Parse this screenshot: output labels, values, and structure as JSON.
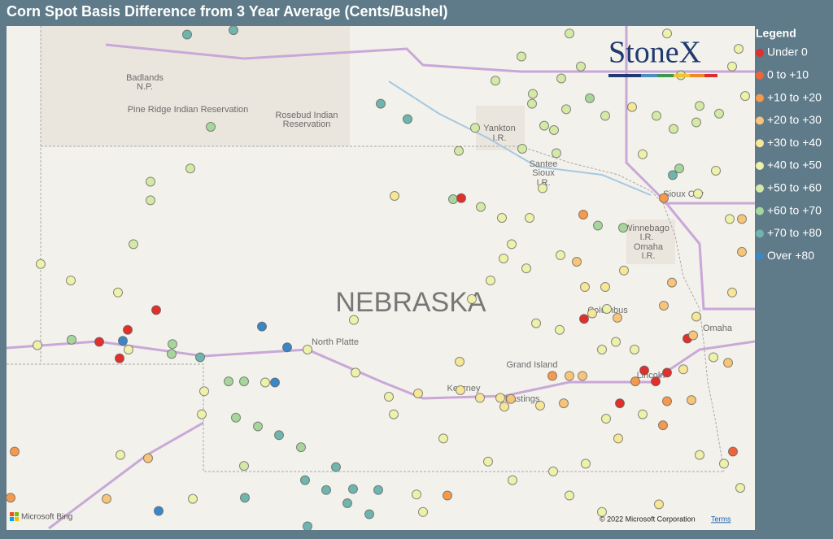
{
  "title": "Corn Spot Basis Difference from 3 Year Average (Cents/Bushel)",
  "logo": "StoneX",
  "legend": {
    "title": "Legend",
    "items": [
      {
        "label": "Under 0",
        "color": "#e0302b"
      },
      {
        "label": "0 to +10",
        "color": "#f0643c"
      },
      {
        "label": "+10 to +20",
        "color": "#f59a4c"
      },
      {
        "label": "+20 to +30",
        "color": "#f7c57a"
      },
      {
        "label": "+30 to +40",
        "color": "#f6e697"
      },
      {
        "label": "+40 to +50",
        "color": "#eef1aa"
      },
      {
        "label": "+50 to +60",
        "color": "#d4e9a6"
      },
      {
        "label": "+60 to +70",
        "color": "#a6d69c"
      },
      {
        "label": "+70 to +80",
        "color": "#6fb5ad"
      },
      {
        "label": "Over +80",
        "color": "#3b86c6"
      }
    ]
  },
  "map": {
    "state_label": "NEBRASKA",
    "places": [
      "Badlands",
      "N.P.",
      "Pine Ridge Indian Reservation",
      "Rosebud Indian",
      "Reservation",
      "Yankton",
      "I.R.",
      "Santee",
      "Sioux",
      "I.R.",
      "Sioux City",
      "Winnebago",
      "I.R.",
      "Omaha",
      "I.R.",
      "North Platte",
      "Columbus",
      "Omaha",
      "Grand Island",
      "Kearney",
      "Hastings",
      "Lincoln"
    ],
    "attribution": [
      "Microsoft Bing",
      "© 2022 Microsoft Corporation",
      "Terms"
    ],
    "points": [
      {
        "lon": -102.25,
        "lat": 43.99,
        "bin": 8
      },
      {
        "lon": -101.68,
        "lat": 44.03,
        "bin": 8
      },
      {
        "lon": -99.87,
        "lat": 43.36,
        "bin": 8
      },
      {
        "lon": -99.54,
        "lat": 43.22,
        "bin": 8
      },
      {
        "lon": -101.96,
        "lat": 43.15,
        "bin": 7
      },
      {
        "lon": -102.7,
        "lat": 42.65,
        "bin": 6
      },
      {
        "lon": -102.21,
        "lat": 42.77,
        "bin": 6
      },
      {
        "lon": -102.7,
        "lat": 42.48,
        "bin": 6
      },
      {
        "lon": -102.91,
        "lat": 42.08,
        "bin": 6
      },
      {
        "lon": -104.05,
        "lat": 41.9,
        "bin": 5
      },
      {
        "lon": -103.68,
        "lat": 41.75,
        "bin": 5
      },
      {
        "lon": -103.1,
        "lat": 41.64,
        "bin": 5
      },
      {
        "lon": -102.63,
        "lat": 41.48,
        "bin": 0
      },
      {
        "lon": -102.98,
        "lat": 41.3,
        "bin": 0
      },
      {
        "lon": -103.33,
        "lat": 41.19,
        "bin": 0
      },
      {
        "lon": -103.04,
        "lat": 41.2,
        "bin": 9
      },
      {
        "lon": -103.08,
        "lat": 41.04,
        "bin": 0
      },
      {
        "lon": -103.67,
        "lat": 41.21,
        "bin": 7
      },
      {
        "lon": -104.09,
        "lat": 41.16,
        "bin": 5
      },
      {
        "lon": -102.43,
        "lat": 41.17,
        "bin": 7
      },
      {
        "lon": -102.44,
        "lat": 41.08,
        "bin": 7
      },
      {
        "lon": -102.97,
        "lat": 41.12,
        "bin": 5
      },
      {
        "lon": -102.09,
        "lat": 41.05,
        "bin": 8
      },
      {
        "lon": -101.33,
        "lat": 41.33,
        "bin": 9
      },
      {
        "lon": -101.02,
        "lat": 41.14,
        "bin": 9
      },
      {
        "lon": -100.77,
        "lat": 41.12,
        "bin": 5
      },
      {
        "lon": -101.74,
        "lat": 40.83,
        "bin": 7
      },
      {
        "lon": -101.55,
        "lat": 40.83,
        "bin": 7
      },
      {
        "lon": -101.29,
        "lat": 40.82,
        "bin": 5
      },
      {
        "lon": -101.17,
        "lat": 40.82,
        "bin": 9
      },
      {
        "lon": -102.04,
        "lat": 40.74,
        "bin": 5
      },
      {
        "lon": -102.07,
        "lat": 40.53,
        "bin": 5
      },
      {
        "lon": -101.65,
        "lat": 40.5,
        "bin": 7
      },
      {
        "lon": -101.38,
        "lat": 40.42,
        "bin": 7
      },
      {
        "lon": -101.12,
        "lat": 40.34,
        "bin": 8
      },
      {
        "lon": -100.85,
        "lat": 40.23,
        "bin": 7
      },
      {
        "lon": -100.42,
        "lat": 40.05,
        "bin": 8
      },
      {
        "lon": -100.8,
        "lat": 39.93,
        "bin": 8
      },
      {
        "lon": -100.54,
        "lat": 39.84,
        "bin": 8
      },
      {
        "lon": -100.21,
        "lat": 39.85,
        "bin": 8
      },
      {
        "lon": -99.9,
        "lat": 39.84,
        "bin": 8
      },
      {
        "lon": -100.28,
        "lat": 39.72,
        "bin": 8
      },
      {
        "lon": -100.01,
        "lat": 39.62,
        "bin": 8
      },
      {
        "lon": -100.77,
        "lat": 39.51,
        "bin": 8
      },
      {
        "lon": -101.54,
        "lat": 39.77,
        "bin": 8
      },
      {
        "lon": -102.6,
        "lat": 39.65,
        "bin": 9
      },
      {
        "lon": -102.18,
        "lat": 39.76,
        "bin": 5
      },
      {
        "lon": -103.24,
        "lat": 39.76,
        "bin": 3
      },
      {
        "lon": -104.42,
        "lat": 39.77,
        "bin": 2
      },
      {
        "lon": -104.37,
        "lat": 40.19,
        "bin": 2
      },
      {
        "lon": -103.07,
        "lat": 40.16,
        "bin": 5
      },
      {
        "lon": -102.73,
        "lat": 40.13,
        "bin": 3
      },
      {
        "lon": -101.55,
        "lat": 40.06,
        "bin": 6
      },
      {
        "lon": -100.18,
        "lat": 40.91,
        "bin": 5
      },
      {
        "lon": -100.2,
        "lat": 41.39,
        "bin": 5
      },
      {
        "lon": -99.7,
        "lat": 42.52,
        "bin": 4
      },
      {
        "lon": -98.98,
        "lat": 42.49,
        "bin": 7
      },
      {
        "lon": -98.88,
        "lat": 42.5,
        "bin": 0
      },
      {
        "lon": -98.64,
        "lat": 42.42,
        "bin": 6
      },
      {
        "lon": -98.91,
        "lat": 42.93,
        "bin": 6
      },
      {
        "lon": -98.71,
        "lat": 43.14,
        "bin": 6
      },
      {
        "lon": -98.46,
        "lat": 43.57,
        "bin": 6
      },
      {
        "lon": -98.0,
        "lat": 43.45,
        "bin": 6
      },
      {
        "lon": -98.01,
        "lat": 43.36,
        "bin": 6
      },
      {
        "lon": -97.86,
        "lat": 43.16,
        "bin": 6
      },
      {
        "lon": -97.74,
        "lat": 43.12,
        "bin": 6
      },
      {
        "lon": -97.55,
        "lat": 44.0,
        "bin": 6
      },
      {
        "lon": -97.65,
        "lat": 43.59,
        "bin": 6
      },
      {
        "lon": -98.14,
        "lat": 43.79,
        "bin": 6
      },
      {
        "lon": -97.41,
        "lat": 43.7,
        "bin": 6
      },
      {
        "lon": -97.3,
        "lat": 43.41,
        "bin": 7
      },
      {
        "lon": -97.11,
        "lat": 43.25,
        "bin": 6
      },
      {
        "lon": -96.78,
        "lat": 43.33,
        "bin": 4
      },
      {
        "lon": -96.48,
        "lat": 43.25,
        "bin": 6
      },
      {
        "lon": -96.27,
        "lat": 43.13,
        "bin": 6
      },
      {
        "lon": -95.99,
        "lat": 43.19,
        "bin": 6
      },
      {
        "lon": -95.71,
        "lat": 43.27,
        "bin": 6
      },
      {
        "lon": -95.39,
        "lat": 43.43,
        "bin": 5
      },
      {
        "lon": -95.55,
        "lat": 43.7,
        "bin": 5
      },
      {
        "lon": -95.47,
        "lat": 43.86,
        "bin": 5
      },
      {
        "lon": -96.35,
        "lat": 44.0,
        "bin": 5
      },
      {
        "lon": -96.2,
        "lat": 42.77,
        "bin": 7
      },
      {
        "lon": -96.28,
        "lat": 42.71,
        "bin": 8
      },
      {
        "lon": -96.39,
        "lat": 42.5,
        "bin": 2
      },
      {
        "lon": -95.97,
        "lat": 42.54,
        "bin": 5
      },
      {
        "lon": -95.58,
        "lat": 42.31,
        "bin": 5
      },
      {
        "lon": -95.43,
        "lat": 42.31,
        "bin": 3
      },
      {
        "lon": -97.38,
        "lat": 42.35,
        "bin": 2
      },
      {
        "lon": -97.2,
        "lat": 42.25,
        "bin": 7
      },
      {
        "lon": -96.89,
        "lat": 42.23,
        "bin": 7
      },
      {
        "lon": -98.04,
        "lat": 42.32,
        "bin": 5
      },
      {
        "lon": -98.38,
        "lat": 42.32,
        "bin": 5
      },
      {
        "lon": -97.88,
        "lat": 42.59,
        "bin": 5
      },
      {
        "lon": -97.71,
        "lat": 42.91,
        "bin": 6
      },
      {
        "lon": -98.13,
        "lat": 42.95,
        "bin": 6
      },
      {
        "lon": -98.26,
        "lat": 42.08,
        "bin": 5
      },
      {
        "lon": -98.36,
        "lat": 41.95,
        "bin": 5
      },
      {
        "lon": -98.08,
        "lat": 41.86,
        "bin": 5
      },
      {
        "lon": -97.66,
        "lat": 41.98,
        "bin": 5
      },
      {
        "lon": -97.46,
        "lat": 41.92,
        "bin": 3
      },
      {
        "lon": -98.52,
        "lat": 41.75,
        "bin": 5
      },
      {
        "lon": -98.75,
        "lat": 41.58,
        "bin": 5
      },
      {
        "lon": -97.36,
        "lat": 41.69,
        "bin": 4
      },
      {
        "lon": -97.11,
        "lat": 41.69,
        "bin": 4
      },
      {
        "lon": -96.88,
        "lat": 41.84,
        "bin": 4
      },
      {
        "lon": -97.37,
        "lat": 41.4,
        "bin": 0
      },
      {
        "lon": -97.27,
        "lat": 41.45,
        "bin": 4
      },
      {
        "lon": -96.96,
        "lat": 41.41,
        "bin": 3
      },
      {
        "lon": -97.09,
        "lat": 41.49,
        "bin": 5
      },
      {
        "lon": -96.39,
        "lat": 41.52,
        "bin": 3
      },
      {
        "lon": -96.29,
        "lat": 41.73,
        "bin": 3
      },
      {
        "lon": -95.99,
        "lat": 41.42,
        "bin": 4
      },
      {
        "lon": -96.1,
        "lat": 41.22,
        "bin": 0
      },
      {
        "lon": -96.03,
        "lat": 41.25,
        "bin": 3
      },
      {
        "lon": -95.78,
        "lat": 41.05,
        "bin": 5
      },
      {
        "lon": -95.6,
        "lat": 41.0,
        "bin": 3
      },
      {
        "lon": -96.15,
        "lat": 40.94,
        "bin": 4
      },
      {
        "lon": -96.63,
        "lat": 40.93,
        "bin": 0
      },
      {
        "lon": -96.35,
        "lat": 40.91,
        "bin": 0
      },
      {
        "lon": -96.49,
        "lat": 40.83,
        "bin": 0
      },
      {
        "lon": -96.74,
        "lat": 40.83,
        "bin": 2
      },
      {
        "lon": -96.93,
        "lat": 40.63,
        "bin": 0
      },
      {
        "lon": -96.35,
        "lat": 40.65,
        "bin": 2
      },
      {
        "lon": -96.05,
        "lat": 40.66,
        "bin": 3
      },
      {
        "lon": -96.4,
        "lat": 40.43,
        "bin": 2
      },
      {
        "lon": -95.54,
        "lat": 40.19,
        "bin": 1
      },
      {
        "lon": -97.76,
        "lat": 40.88,
        "bin": 2
      },
      {
        "lon": -97.55,
        "lat": 40.88,
        "bin": 3
      },
      {
        "lon": -97.39,
        "lat": 40.88,
        "bin": 3
      },
      {
        "lon": -97.62,
        "lat": 40.63,
        "bin": 3
      },
      {
        "lon": -97.91,
        "lat": 40.61,
        "bin": 4
      },
      {
        "lon": -98.4,
        "lat": 40.68,
        "bin": 4
      },
      {
        "lon": -98.27,
        "lat": 40.67,
        "bin": 3
      },
      {
        "lon": -98.65,
        "lat": 40.68,
        "bin": 4
      },
      {
        "lon": -98.9,
        "lat": 41.01,
        "bin": 4
      },
      {
        "lon": -99.05,
        "lat": 39.79,
        "bin": 2
      },
      {
        "lon": -99.41,
        "lat": 40.72,
        "bin": 4
      },
      {
        "lon": -99.77,
        "lat": 40.69,
        "bin": 5
      },
      {
        "lon": -99.1,
        "lat": 40.31,
        "bin": 5
      },
      {
        "lon": -98.89,
        "lat": 40.75,
        "bin": 4
      },
      {
        "lon": -97.96,
        "lat": 41.36,
        "bin": 5
      },
      {
        "lon": -97.67,
        "lat": 41.3,
        "bin": 5
      },
      {
        "lon": -96.98,
        "lat": 41.19,
        "bin": 5
      },
      {
        "lon": -97.15,
        "lat": 41.12,
        "bin": 5
      },
      {
        "lon": -96.75,
        "lat": 41.12,
        "bin": 5
      },
      {
        "lon": -98.35,
        "lat": 40.6,
        "bin": 4
      },
      {
        "lon": -97.1,
        "lat": 40.49,
        "bin": 5
      },
      {
        "lon": -96.65,
        "lat": 40.53,
        "bin": 5
      },
      {
        "lon": -96.95,
        "lat": 40.31,
        "bin": 4
      },
      {
        "lon": -97.35,
        "lat": 40.08,
        "bin": 5
      },
      {
        "lon": -97.75,
        "lat": 40.01,
        "bin": 5
      },
      {
        "lon": -98.25,
        "lat": 39.93,
        "bin": 5
      },
      {
        "lon": -98.55,
        "lat": 40.1,
        "bin": 5
      },
      {
        "lon": -99.43,
        "lat": 39.8,
        "bin": 5
      },
      {
        "lon": -99.35,
        "lat": 39.64,
        "bin": 5
      },
      {
        "lon": -95.95,
        "lat": 40.16,
        "bin": 5
      },
      {
        "lon": -95.65,
        "lat": 40.08,
        "bin": 5
      },
      {
        "lon": -97.55,
        "lat": 39.79,
        "bin": 5
      },
      {
        "lon": -97.15,
        "lat": 39.64,
        "bin": 5
      },
      {
        "lon": -96.45,
        "lat": 39.71,
        "bin": 4
      },
      {
        "lon": -95.45,
        "lat": 39.86,
        "bin": 5
      },
      {
        "lon": -99.71,
        "lat": 40.53,
        "bin": 5
      },
      {
        "lon": -96.18,
        "lat": 43.62,
        "bin": 6
      },
      {
        "lon": -95.95,
        "lat": 43.34,
        "bin": 6
      },
      {
        "lon": -96.65,
        "lat": 42.9,
        "bin": 5
      },
      {
        "lon": -95.75,
        "lat": 42.75,
        "bin": 5
      },
      {
        "lon": -95.43,
        "lat": 42.01,
        "bin": 3
      },
      {
        "lon": -95.55,
        "lat": 41.64,
        "bin": 4
      },
      {
        "lon": -97.59,
        "lat": 43.31,
        "bin": 6
      }
    ]
  }
}
